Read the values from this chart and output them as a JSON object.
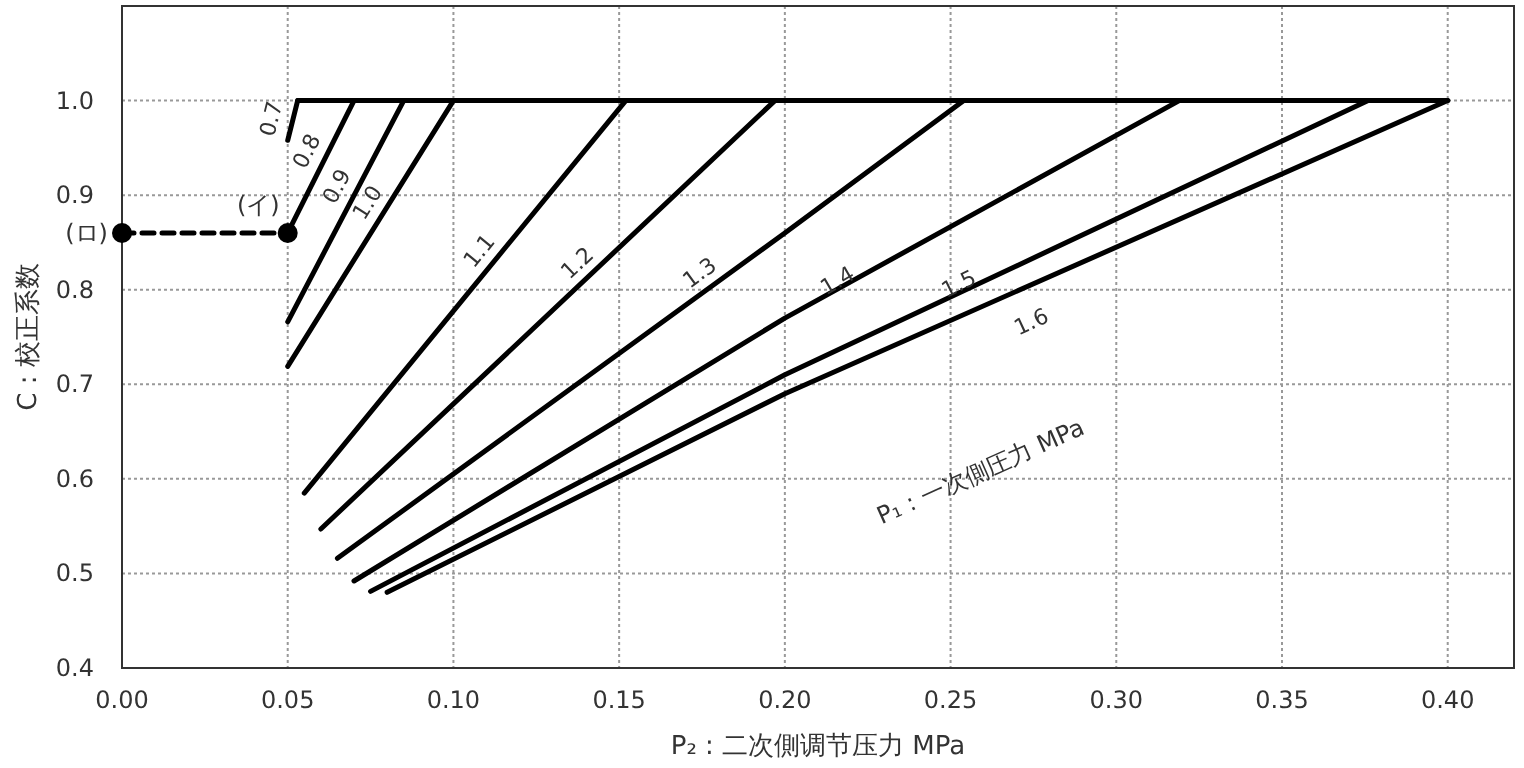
{
  "chart_data": {
    "type": "line",
    "xlabel": "P₂ : 二次側调节压力 MPa",
    "ylabel": "C : 校正系数",
    "xlim": [
      0,
      0.42
    ],
    "ylim": [
      0.4,
      1.1
    ],
    "xticks": [
      {
        "value": 0,
        "label": "0.00"
      },
      {
        "value": 0.05,
        "label": "0.05"
      },
      {
        "value": 0.1,
        "label": "0.10"
      },
      {
        "value": 0.15,
        "label": "0.15"
      },
      {
        "value": 0.2,
        "label": "0.20"
      },
      {
        "value": 0.25,
        "label": "0.25"
      },
      {
        "value": 0.3,
        "label": "0.30"
      },
      {
        "value": 0.35,
        "label": "0.35"
      },
      {
        "value": 0.4,
        "label": "0.40"
      }
    ],
    "yticks": [
      0.4,
      0.5,
      0.6,
      0.7,
      0.8,
      0.9,
      {
        "value": 1,
        "label": "1.0"
      }
    ],
    "grid": true,
    "line_style": "solid",
    "series": [
      {
        "color": "#000000",
        "x": [
          0.053,
          0.4
        ],
        "values": [
          1.0,
          1.0
        ]
      },
      {
        "name": "0.7",
        "color": "#000000",
        "x": [
          0.05,
          0.053
        ],
        "values": [
          0.958,
          1.0
        ]
      },
      {
        "name": "0.8",
        "color": "#000000",
        "x": [
          0.05,
          0.07
        ],
        "values": [
          0.86,
          1.0
        ]
      },
      {
        "name": "0.9",
        "color": "#000000",
        "x": [
          0.05,
          0.085
        ],
        "values": [
          0.766,
          1.0
        ]
      },
      {
        "name": "1.0",
        "color": "#000000",
        "x": [
          0.05,
          0.1
        ],
        "values": [
          0.719,
          1.0
        ]
      },
      {
        "name": "1.1",
        "color": "#000000",
        "x": [
          0.055,
          0.152
        ],
        "values": [
          0.585,
          1.0
        ]
      },
      {
        "name": "1.2",
        "color": "#000000",
        "x": [
          0.06,
          0.197
        ],
        "values": [
          0.547,
          1.0
        ]
      },
      {
        "name": "1.3",
        "color": "#000000",
        "x": [
          0.065,
          0.2,
          0.254
        ],
        "values": [
          0.516,
          0.86,
          1.0
        ]
      },
      {
        "name": "1.4",
        "color": "#000000",
        "x": [
          0.07,
          0.2,
          0.319
        ],
        "values": [
          0.492,
          0.77,
          1.0
        ]
      },
      {
        "name": "1.5",
        "color": "#000000",
        "x": [
          0.075,
          0.2,
          0.376
        ],
        "values": [
          0.481,
          0.71,
          1.0
        ]
      },
      {
        "name": "1.6",
        "color": "#000000",
        "x": [
          0.08,
          0.2,
          0.4
        ],
        "values": [
          0.48,
          0.69,
          1.0
        ]
      },
      {
        "color": "#000000",
        "x": [
          0,
          0.05
        ],
        "values": [
          0.86,
          0.86
        ],
        "marker": "circle",
        "line_style": "dashed"
      }
    ],
    "annotations": [
      {
        "text": "(イ)",
        "x": 0.05,
        "y": 0.86
      },
      {
        "text": "(ロ)",
        "x": 0,
        "y": 0.86
      },
      "P₁ : 一次側圧力 MPa"
    ]
  }
}
